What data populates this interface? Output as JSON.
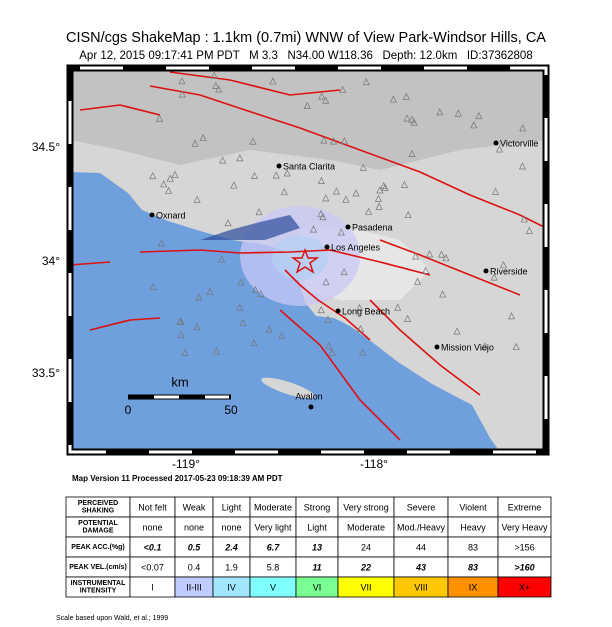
{
  "header": {
    "title": "CISN/cgs ShakeMap : 1.1km (0.7mi) WNW of View Park-Windsor Hills, CA",
    "subtitle": "Apr 12, 2015 09:17:41 PM PDT   M 3.3   N34.00 W118.36   Depth: 12.0km   ID:37362808"
  },
  "map": {
    "lat_labels": [
      "34.5°",
      "34°",
      "33.5°"
    ],
    "lon_labels": [
      "-119°",
      "-118°"
    ],
    "cities": [
      "Victorville",
      "Santa Clarita",
      "Oxnard",
      "Pasadena",
      "Los Angeles",
      "Riverside",
      "Long Beach",
      "Mission Viejo",
      "Avalon"
    ],
    "scale": {
      "unit": "km",
      "labels": [
        "0",
        "50"
      ]
    }
  },
  "version": "Map Version 11 Processed 2017-05-23 09:18:39 AM PDT",
  "legend": {
    "row_headers": [
      [
        "PERCEIVED",
        "SHAKING"
      ],
      [
        "POTENTIAL",
        "DAMAGE"
      ],
      [
        "PEAK ACC.(%g)"
      ],
      [
        "PEAK VEL.(cm/s)"
      ],
      [
        "INSTRUMENTAL",
        "INTENSITY"
      ]
    ],
    "shaking": [
      "Not felt",
      "Weak",
      "Light",
      "Moderate",
      "Strong",
      "Very strong",
      "Severe",
      "Violent",
      "Extreme"
    ],
    "damage": [
      "none",
      "none",
      "none",
      "Very light",
      "Light",
      "Moderate",
      "Mod./Heavy",
      "Heavy",
      "Very Heavy"
    ],
    "acc": [
      "<0.1",
      "0.5",
      "2.4",
      "6.7",
      "13",
      "24",
      "44",
      "83",
      ">156"
    ],
    "vel": [
      "<0.07",
      "0.4",
      "1.9",
      "5.8",
      "11",
      "22",
      "43",
      "83",
      ">160"
    ],
    "intensity": [
      "I",
      "II-III",
      "IV",
      "V",
      "VI",
      "VII",
      "VIII",
      "IX",
      "X+"
    ]
  },
  "footnote": "Scale based upon Wald, et al.; 1999"
}
